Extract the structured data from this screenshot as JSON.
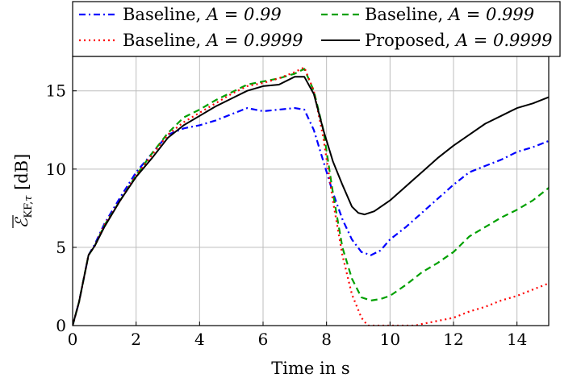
{
  "chart_data": {
    "type": "line",
    "title": "",
    "xlabel": "Time in s",
    "ylabel": "Ē_KF,τ [dB]",
    "xlim": [
      0,
      15
    ],
    "ylim": [
      0,
      17.2
    ],
    "xticks": [
      0,
      2,
      4,
      6,
      8,
      10,
      12,
      14
    ],
    "yticks": [
      0,
      5,
      10,
      15
    ],
    "grid": true,
    "legend_position": "top",
    "series": [
      {
        "name": "Baseline, A = 0.99",
        "color": "#0000ff",
        "dash": "dashdot",
        "x": [
          0,
          0.2,
          0.35,
          0.5,
          0.7,
          1.0,
          1.5,
          2.0,
          2.5,
          3.0,
          3.5,
          4.0,
          4.5,
          5.0,
          5.5,
          6.0,
          6.5,
          7.0,
          7.3,
          7.6,
          7.9,
          8.2,
          8.5,
          8.8,
          9.1,
          9.4,
          9.7,
          10.0,
          10.5,
          11.0,
          11.5,
          12.0,
          12.5,
          13.0,
          13.5,
          14.0,
          14.5,
          15.0
        ],
        "y": [
          0,
          1.5,
          3.0,
          4.5,
          5.2,
          6.5,
          8.2,
          9.8,
          11.0,
          12.2,
          12.6,
          12.8,
          13.1,
          13.5,
          13.9,
          13.7,
          13.8,
          13.9,
          13.8,
          12.5,
          10.5,
          8.5,
          6.8,
          5.5,
          4.7,
          4.5,
          4.8,
          5.5,
          6.3,
          7.2,
          8.1,
          9.0,
          9.8,
          10.2,
          10.6,
          11.1,
          11.4,
          11.8
        ]
      },
      {
        "name": "Baseline, A = 0.999",
        "color": "#00a000",
        "dash": "dashed",
        "x": [
          0,
          0.2,
          0.35,
          0.5,
          0.7,
          1.0,
          1.5,
          2.0,
          2.5,
          3.0,
          3.5,
          4.0,
          4.5,
          5.0,
          5.5,
          6.0,
          6.5,
          7.0,
          7.3,
          7.6,
          7.9,
          8.2,
          8.5,
          8.8,
          9.1,
          9.4,
          9.7,
          10.0,
          10.5,
          11.0,
          11.5,
          12.0,
          12.5,
          13.0,
          13.5,
          14.0,
          14.5,
          15.0
        ],
        "y": [
          0,
          1.5,
          3.0,
          4.5,
          5.1,
          6.4,
          8.0,
          9.6,
          11.0,
          12.3,
          13.3,
          13.8,
          14.4,
          14.9,
          15.4,
          15.6,
          15.8,
          16.1,
          16.4,
          15.0,
          12.5,
          8.5,
          5.0,
          3.0,
          1.8,
          1.6,
          1.7,
          1.9,
          2.6,
          3.4,
          4.0,
          4.7,
          5.7,
          6.3,
          6.9,
          7.4,
          8.0,
          8.8
        ]
      },
      {
        "name": "Baseline, A = 0.9999",
        "color": "#ff0000",
        "dash": "dotted",
        "x": [
          0,
          0.2,
          0.35,
          0.5,
          0.7,
          1.0,
          1.5,
          2.0,
          2.5,
          3.0,
          3.5,
          4.0,
          4.5,
          5.0,
          5.5,
          6.0,
          6.5,
          7.0,
          7.3,
          7.6,
          7.9,
          8.2,
          8.5,
          8.8,
          9.1,
          9.3,
          9.5,
          10.8,
          11.0,
          11.5,
          12.0,
          12.5,
          13.0,
          13.5,
          14.0,
          14.5,
          15.0
        ],
        "y": [
          0,
          1.5,
          3.0,
          4.5,
          5.1,
          6.4,
          8.0,
          9.6,
          10.9,
          12.2,
          13.0,
          13.6,
          14.2,
          14.8,
          15.3,
          15.5,
          15.8,
          16.2,
          16.5,
          15.0,
          12.0,
          8.0,
          4.5,
          2.0,
          0.5,
          0.0,
          0.0,
          0.0,
          0.1,
          0.3,
          0.5,
          0.9,
          1.2,
          1.6,
          1.9,
          2.3,
          2.7
        ]
      },
      {
        "name": "Proposed, A = 0.9999",
        "color": "#000000",
        "dash": "solid",
        "x": [
          0,
          0.2,
          0.35,
          0.5,
          0.7,
          1.0,
          1.5,
          2.0,
          2.5,
          3.0,
          3.5,
          4.0,
          4.5,
          5.0,
          5.5,
          6.0,
          6.5,
          7.0,
          7.3,
          7.6,
          7.9,
          8.2,
          8.5,
          8.8,
          9.0,
          9.2,
          9.5,
          10.0,
          10.5,
          11.0,
          11.5,
          12.0,
          12.5,
          13.0,
          13.5,
          14.0,
          14.5,
          15.0
        ],
        "y": [
          0,
          1.5,
          3.0,
          4.5,
          5.1,
          6.3,
          8.0,
          9.5,
          10.7,
          12.0,
          12.8,
          13.4,
          14.0,
          14.5,
          15.0,
          15.3,
          15.4,
          15.9,
          15.9,
          14.8,
          12.5,
          10.5,
          9.0,
          7.6,
          7.2,
          7.1,
          7.3,
          8.0,
          8.9,
          9.8,
          10.7,
          11.5,
          12.2,
          12.9,
          13.4,
          13.9,
          14.2,
          14.6
        ]
      }
    ],
    "legend": [
      {
        "label": "Baseline, ",
        "math": "A = 0.99"
      },
      {
        "label": "Baseline, ",
        "math": "A = 0.999"
      },
      {
        "label": "Baseline, ",
        "math": "A = 0.9999"
      },
      {
        "label": "Proposed, ",
        "math": "A = 0.9999"
      }
    ]
  }
}
